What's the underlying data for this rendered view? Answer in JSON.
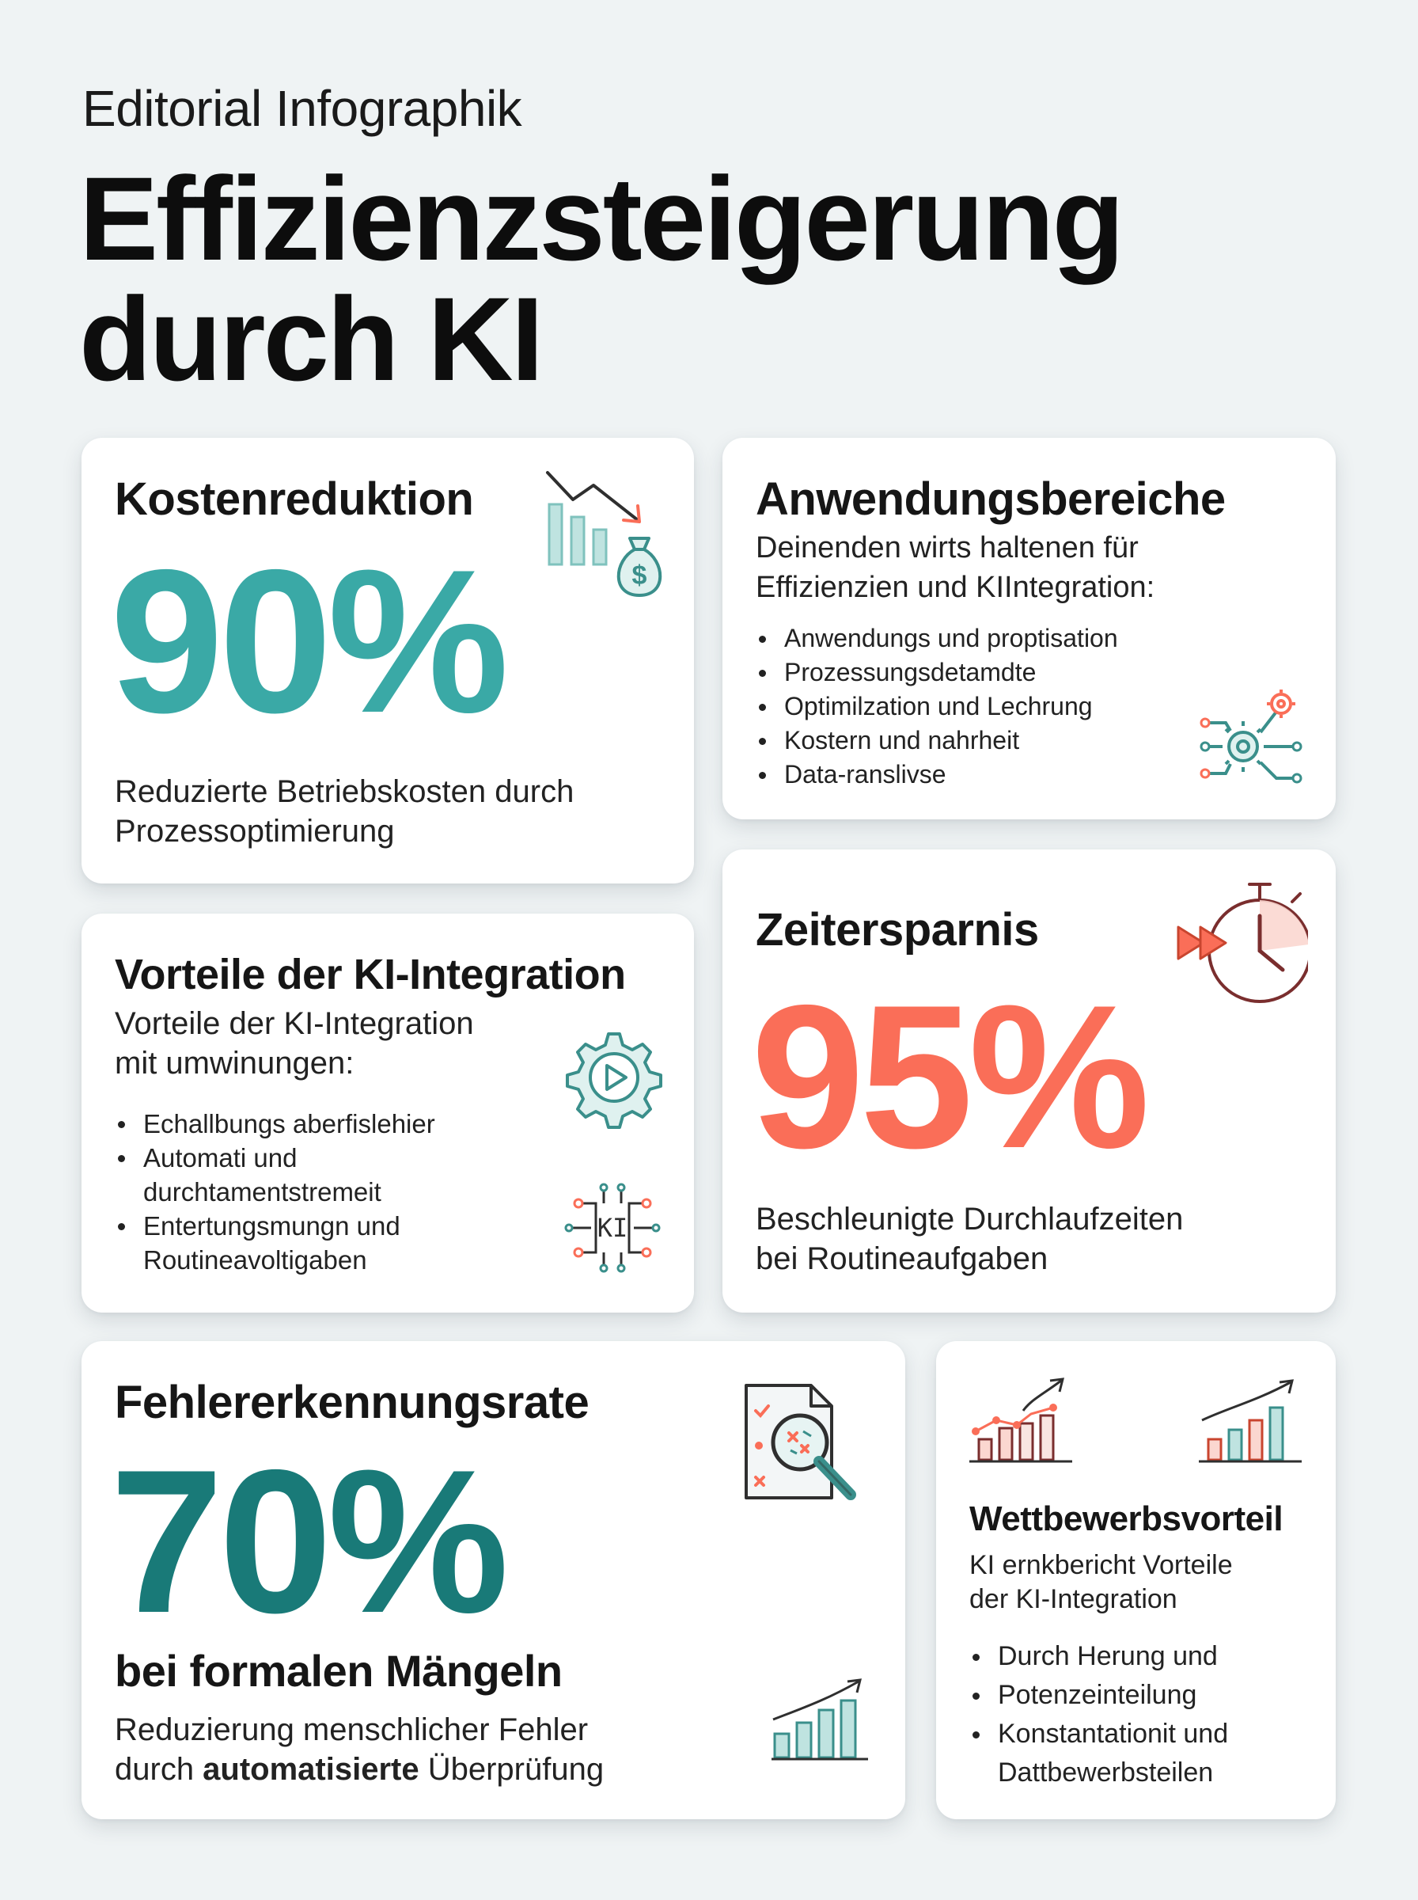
{
  "header": {
    "kicker": "Editorial Infographik",
    "title_line1": "Effizienzsteigerung",
    "title_line2": "durch KI"
  },
  "cards": {
    "kosten": {
      "heading": "Kostenreduktion",
      "value": "90%",
      "desc_line1": "Reduzierte Betriebskosten durch",
      "desc_line2": "Prozessoptimierung",
      "icons": [
        "chart-down-icon",
        "money-bag-icon"
      ]
    },
    "anwendung": {
      "heading": "Anwendungsbereiche",
      "intro_line1": "Deinenden wirts haltenen für",
      "intro_line2": "Effizienzien und KIIntegration:",
      "items": [
        "Anwendungs und proptisation",
        "Prozessungsdetamdte",
        "Optimilzation und Lechrung",
        "Kostern und nahrheit",
        "Data-ranslivse"
      ],
      "icons": [
        "gear-network-icon"
      ]
    },
    "vorteile": {
      "heading": "Vorteile der KI-Integration",
      "intro_line1": "Vorteile der KI-Integration",
      "intro_line2": "mit umwinungen:",
      "items": [
        "Echallbungs aberfislehier",
        "Automati und",
        "durchtamentstremeit",
        "Entertungsmungn und",
        "Routineavoltigaben"
      ],
      "chip_label": "KI",
      "icons": [
        "gear-play-icon",
        "ai-chip-icon"
      ]
    },
    "zeit": {
      "heading": "Zeitersparnis",
      "value": "95%",
      "desc_line1": "Beschleunigte Durchlaufzeiten",
      "desc_line2": "bei Routineaufgaben",
      "icons": [
        "stopwatch-icon"
      ]
    },
    "fehler": {
      "heading": "Fehlererkennungsrate",
      "value": "70%",
      "subheading": "bei formalen Mängeln",
      "desc_line1": "Reduzierung menschlicher Fehler",
      "desc_line2_pre": "durch ",
      "desc_line2_bold": "automatisierte",
      "desc_line2_post": " Überprüfung",
      "icons": [
        "document-magnifier-icon",
        "growth-chart-icon"
      ]
    },
    "wettbewerb": {
      "heading": "Wettbewerbsvorteil",
      "intro_line1": "KI ernkbericht Vorteile",
      "intro_line2": "der KI-Integration",
      "items": [
        "Durch Herung und",
        "Potenzeinteilung",
        "Konstantationit und",
        "Dattbewerbsteilen"
      ],
      "icons": [
        "trend-chart-icon",
        "bar-growth-icon"
      ]
    }
  },
  "colors": {
    "teal": "#3aa9a6",
    "dark_teal": "#197a78",
    "coral": "#fa6e58",
    "background": "#eff3f4"
  }
}
